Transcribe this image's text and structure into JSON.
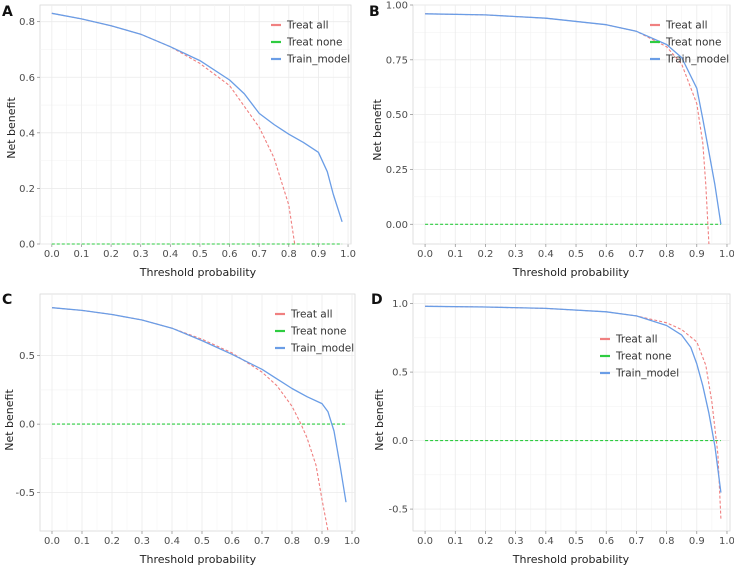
{
  "colors": {
    "treat_all": "#f08080",
    "treat_none": "#2ecc40",
    "train_model": "#6a9de6",
    "grid": "#ebebeb",
    "axis_text": "#4d4d4d",
    "frame": "#d8d8d8"
  },
  "chart_data": [
    {
      "panel": "A",
      "type": "line",
      "xlabel": "Threshold probability",
      "ylabel": "Net benefit",
      "xlim": [
        -0.04,
        1.01
      ],
      "ylim": [
        0.0,
        0.86
      ],
      "xticks": [
        0.0,
        0.1,
        0.2,
        0.3,
        0.4,
        0.5,
        0.6,
        0.7,
        0.8,
        0.9,
        1.0
      ],
      "xtick_labels": [
        "0.0",
        "0.1",
        "0.2",
        "0.3",
        "0.4",
        "0.5",
        "0.6",
        "0.7",
        "0.8",
        "0.9",
        "1.0"
      ],
      "yticks": [
        0.0,
        0.2,
        0.4,
        0.6,
        0.8
      ],
      "ytick_labels": [
        "0.0",
        "0.2",
        "0.4",
        "0.6",
        "0.8"
      ],
      "legend": [
        "Treat all",
        "Treat none",
        "Train_model"
      ],
      "legend_position": "top-right",
      "series": [
        {
          "name": "Treat all",
          "x": [
            0.0,
            0.1,
            0.2,
            0.3,
            0.4,
            0.5,
            0.6,
            0.7,
            0.75,
            0.8,
            0.82
          ],
          "y": [
            0.83,
            0.81,
            0.785,
            0.755,
            0.71,
            0.65,
            0.57,
            0.42,
            0.31,
            0.14,
            0.0
          ]
        },
        {
          "name": "Treat none",
          "x": [
            0.0,
            0.98
          ],
          "y": [
            0.0,
            0.0
          ]
        },
        {
          "name": "Train_model",
          "x": [
            0.0,
            0.1,
            0.2,
            0.3,
            0.4,
            0.5,
            0.6,
            0.65,
            0.7,
            0.75,
            0.8,
            0.85,
            0.9,
            0.93,
            0.95,
            0.98
          ],
          "y": [
            0.83,
            0.81,
            0.785,
            0.755,
            0.71,
            0.66,
            0.59,
            0.54,
            0.47,
            0.43,
            0.395,
            0.365,
            0.33,
            0.26,
            0.18,
            0.08
          ]
        }
      ]
    },
    {
      "panel": "B",
      "type": "line",
      "xlabel": "Threshold probability",
      "ylabel": "Net benefit",
      "xlim": [
        -0.04,
        1.01
      ],
      "ylim": [
        -0.09,
        1.0
      ],
      "xticks": [
        0.0,
        0.1,
        0.2,
        0.3,
        0.4,
        0.5,
        0.6,
        0.7,
        0.8,
        0.9,
        1.0
      ],
      "xtick_labels": [
        "0.0",
        "0.1",
        "0.2",
        "0.3",
        "0.4",
        "0.5",
        "0.6",
        "0.7",
        "0.8",
        "0.9",
        "1.0"
      ],
      "yticks": [
        0.0,
        0.25,
        0.5,
        0.75,
        1.0
      ],
      "ytick_labels": [
        "0.00",
        "0.25",
        "0.50",
        "0.75",
        "1.00"
      ],
      "legend": [
        "Treat all",
        "Treat none",
        "Train_model"
      ],
      "legend_position": "top-right",
      "series": [
        {
          "name": "Treat all",
          "x": [
            0.0,
            0.2,
            0.4,
            0.6,
            0.7,
            0.8,
            0.85,
            0.9,
            0.92,
            0.93,
            0.94
          ],
          "y": [
            0.96,
            0.955,
            0.94,
            0.91,
            0.88,
            0.81,
            0.73,
            0.55,
            0.37,
            0.18,
            -0.09
          ]
        },
        {
          "name": "Treat none",
          "x": [
            0.0,
            0.98
          ],
          "y": [
            0.0,
            0.0
          ]
        },
        {
          "name": "Train_model",
          "x": [
            0.0,
            0.2,
            0.4,
            0.6,
            0.7,
            0.8,
            0.85,
            0.9,
            0.92,
            0.94,
            0.96,
            0.98
          ],
          "y": [
            0.96,
            0.955,
            0.94,
            0.91,
            0.88,
            0.82,
            0.76,
            0.62,
            0.48,
            0.33,
            0.18,
            0.0
          ]
        }
      ]
    },
    {
      "panel": "C",
      "type": "line",
      "xlabel": "Threshold probability",
      "ylabel": "Net benefit",
      "xlim": [
        -0.04,
        1.01
      ],
      "ylim": [
        -0.78,
        0.95
      ],
      "xticks": [
        0.0,
        0.1,
        0.2,
        0.3,
        0.4,
        0.5,
        0.6,
        0.7,
        0.8,
        0.9,
        1.0
      ],
      "xtick_labels": [
        "0.0",
        "0.1",
        "0.2",
        "0.3",
        "0.4",
        "0.5",
        "0.6",
        "0.7",
        "0.8",
        "0.9",
        "1.0"
      ],
      "yticks": [
        -0.5,
        0.0,
        0.5
      ],
      "ytick_labels": [
        "-0.5",
        "0.0",
        "0.5"
      ],
      "legend": [
        "Treat all",
        "Treat none",
        "Train_model"
      ],
      "legend_position": "top-right",
      "series": [
        {
          "name": "Treat all",
          "x": [
            0.0,
            0.1,
            0.2,
            0.3,
            0.4,
            0.5,
            0.6,
            0.7,
            0.75,
            0.8,
            0.83,
            0.85,
            0.88,
            0.9,
            0.92
          ],
          "y": [
            0.85,
            0.83,
            0.8,
            0.76,
            0.7,
            0.62,
            0.52,
            0.38,
            0.28,
            0.13,
            0.0,
            -0.1,
            -0.3,
            -0.55,
            -0.78
          ]
        },
        {
          "name": "Treat none",
          "x": [
            0.0,
            0.98
          ],
          "y": [
            0.0,
            0.0
          ]
        },
        {
          "name": "Train_model",
          "x": [
            0.0,
            0.1,
            0.2,
            0.3,
            0.4,
            0.5,
            0.6,
            0.7,
            0.75,
            0.8,
            0.85,
            0.9,
            0.92,
            0.94,
            0.96,
            0.98
          ],
          "y": [
            0.85,
            0.83,
            0.8,
            0.76,
            0.7,
            0.61,
            0.51,
            0.4,
            0.33,
            0.26,
            0.2,
            0.15,
            0.09,
            -0.05,
            -0.3,
            -0.57
          ]
        }
      ]
    },
    {
      "panel": "D",
      "type": "line",
      "xlabel": "Threshold probability",
      "ylabel": "Net benefit",
      "xlim": [
        -0.04,
        1.01
      ],
      "ylim": [
        -0.66,
        1.07
      ],
      "xticks": [
        0.0,
        0.1,
        0.2,
        0.3,
        0.4,
        0.5,
        0.6,
        0.7,
        0.8,
        0.9,
        1.0
      ],
      "xtick_labels": [
        "0.0",
        "0.1",
        "0.2",
        "0.3",
        "0.4",
        "0.5",
        "0.6",
        "0.7",
        "0.8",
        "0.9",
        "1.0"
      ],
      "yticks": [
        -0.5,
        0.0,
        0.5,
        1.0
      ],
      "ytick_labels": [
        "-0.5",
        "0.0",
        "0.5",
        "1.0"
      ],
      "legend": [
        "Treat all",
        "Treat none",
        "Train_model"
      ],
      "legend_position": "center-right",
      "series": [
        {
          "name": "Treat all",
          "x": [
            0.0,
            0.2,
            0.4,
            0.6,
            0.7,
            0.8,
            0.85,
            0.9,
            0.93,
            0.95,
            0.97,
            0.98
          ],
          "y": [
            0.98,
            0.975,
            0.965,
            0.94,
            0.91,
            0.86,
            0.81,
            0.72,
            0.55,
            0.28,
            -0.1,
            -0.57
          ]
        },
        {
          "name": "Treat none",
          "x": [
            0.0,
            0.98
          ],
          "y": [
            0.0,
            0.0
          ]
        },
        {
          "name": "Train_model",
          "x": [
            0.0,
            0.2,
            0.4,
            0.6,
            0.7,
            0.8,
            0.85,
            0.88,
            0.9,
            0.92,
            0.94,
            0.96,
            0.98
          ],
          "y": [
            0.98,
            0.975,
            0.965,
            0.94,
            0.91,
            0.84,
            0.77,
            0.68,
            0.56,
            0.4,
            0.2,
            -0.04,
            -0.38
          ]
        }
      ]
    }
  ]
}
